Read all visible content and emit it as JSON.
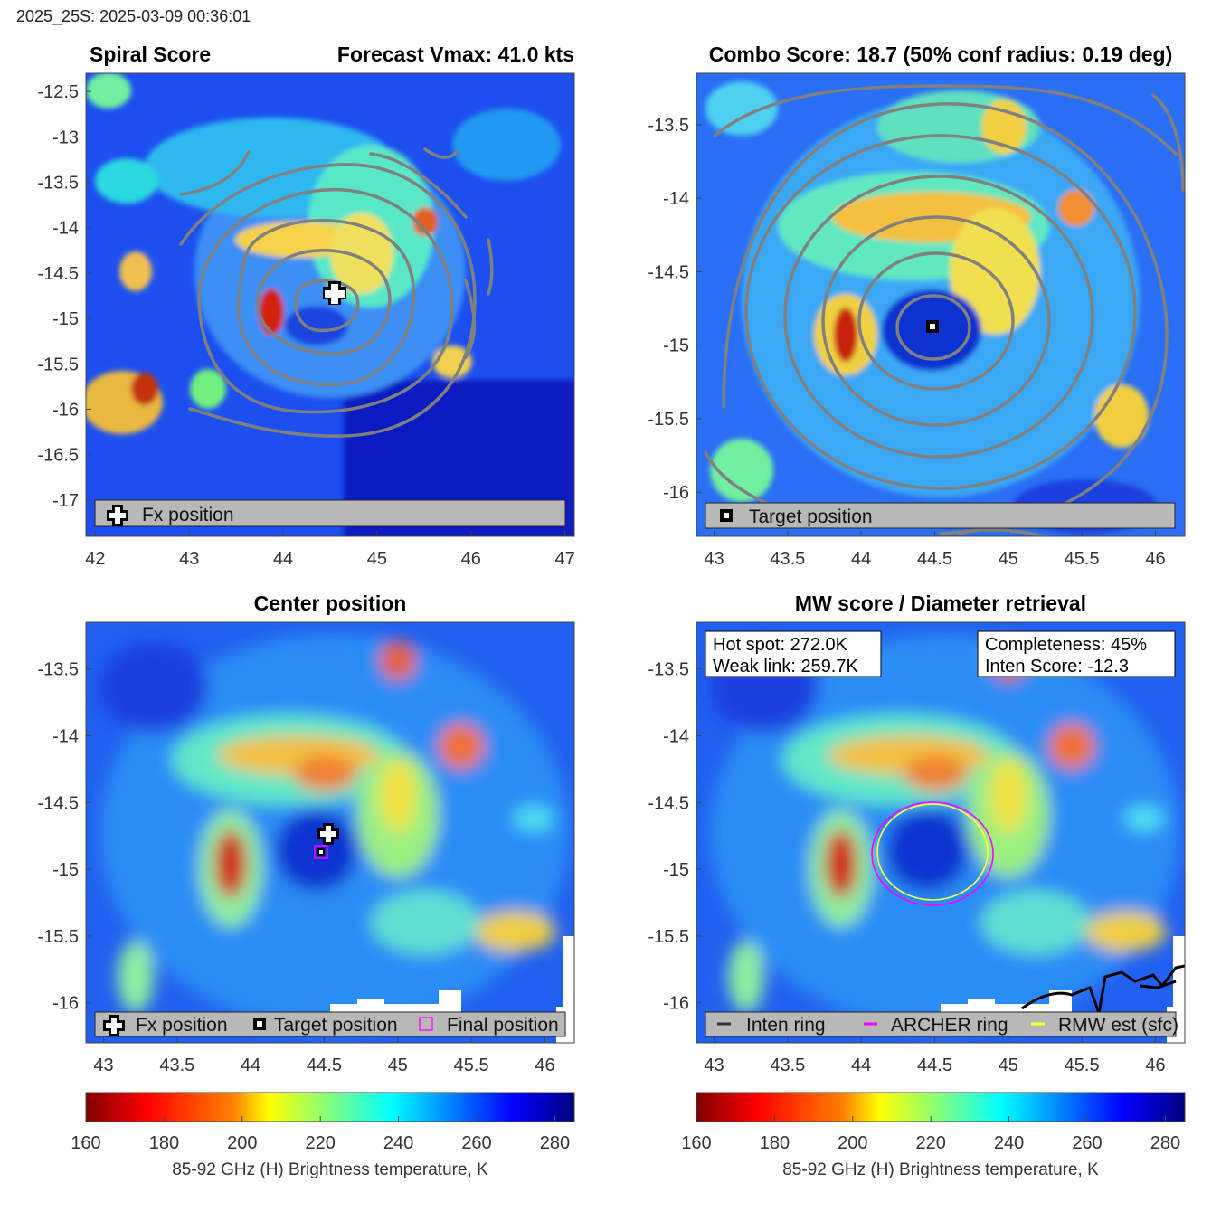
{
  "header": "2025_25S: 2025-03-09 00:36:01",
  "panels": {
    "spiral": {
      "title_left": "Spiral Score",
      "title_right": "Forecast Vmax: 41.0 kts",
      "legend": "Fx position"
    },
    "combo": {
      "title": "Combo Score: 18.7  (50% conf radius: 0.19 deg)",
      "legend": "Target position"
    },
    "center": {
      "title": "Center position",
      "legend": [
        "Fx position",
        "Target position",
        "Final position"
      ]
    },
    "mw": {
      "title": "MW score / Diameter retrieval",
      "info_left": [
        "Hot spot: 272.0K",
        "Weak link: 259.7K"
      ],
      "info_right": [
        "Completeness: 45%",
        "Inten Score: -12.3"
      ],
      "legend": [
        "Inten ring",
        "ARCHER ring",
        "RMW est (sfc)"
      ]
    }
  },
  "colorbar": {
    "label": "85-92 GHz (H) Brightness temperature, K",
    "ticks": [
      "160",
      "180",
      "200",
      "220",
      "240",
      "260",
      "280"
    ]
  },
  "chart_data": [
    {
      "type": "heatmap",
      "title": "Spiral Score",
      "subtitle": "Forecast Vmax: 41.0 kts",
      "xlim": [
        41.9,
        47.1
      ],
      "ylim": [
        -17.4,
        -12.3
      ],
      "xticks": [
        42,
        43,
        44,
        45,
        46,
        47
      ],
      "yticks": [
        -12.5,
        -13,
        -13.5,
        -14,
        -14.5,
        -15,
        -15.5,
        -16,
        -16.5,
        -17
      ],
      "markers": [
        {
          "name": "Fx position",
          "x": 44.52,
          "y": -14.7
        }
      ]
    },
    {
      "type": "heatmap",
      "title": "Combo Score: 18.7  (50% conf radius: 0.19 deg)",
      "xlim": [
        42.88,
        46.2
      ],
      "ylim": [
        -16.3,
        -13.15
      ],
      "xticks": [
        43,
        43.5,
        44,
        44.5,
        45,
        45.5,
        46
      ],
      "yticks": [
        -13.5,
        -14,
        -14.5,
        -15,
        -15.5,
        -16
      ],
      "markers": [
        {
          "name": "Target position",
          "x": 44.47,
          "y": -14.85
        }
      ]
    },
    {
      "type": "heatmap",
      "title": "Center position",
      "xlim": [
        42.88,
        46.2
      ],
      "ylim": [
        -16.3,
        -13.15
      ],
      "xticks": [
        43,
        43.5,
        44,
        44.5,
        45,
        45.5,
        46
      ],
      "yticks": [
        -13.5,
        -14,
        -14.5,
        -15,
        -15.5,
        -16
      ],
      "markers": [
        {
          "name": "Fx position",
          "x": 44.52,
          "y": -14.7
        },
        {
          "name": "Target position",
          "x": 44.47,
          "y": -14.85
        },
        {
          "name": "Final position",
          "x": 44.47,
          "y": -14.85
        }
      ]
    },
    {
      "type": "heatmap",
      "title": "MW score / Diameter retrieval",
      "xlim": [
        42.88,
        46.2
      ],
      "ylim": [
        -16.3,
        -13.15
      ],
      "xticks": [
        43,
        43.5,
        44,
        44.5,
        45,
        45.5,
        46
      ],
      "yticks": [
        -13.5,
        -14,
        -14.5,
        -15,
        -15.5,
        -16
      ],
      "rings": [
        {
          "name": "ARCHER ring",
          "color": "#ff00ff",
          "cx": 44.47,
          "cy": -14.85,
          "rx": 0.42,
          "ry": 0.34
        },
        {
          "name": "RMW est (sfc)",
          "color": "#ffff33",
          "cx": 44.47,
          "cy": -14.83,
          "rx": 0.38,
          "ry": 0.32
        }
      ]
    }
  ],
  "colormap": {
    "range": [
      160,
      285
    ],
    "stops": [
      "#800000",
      "#ff0000",
      "#ff8000",
      "#ffff00",
      "#80ff80",
      "#00ffff",
      "#0080ff",
      "#0000ff",
      "#000080"
    ]
  }
}
